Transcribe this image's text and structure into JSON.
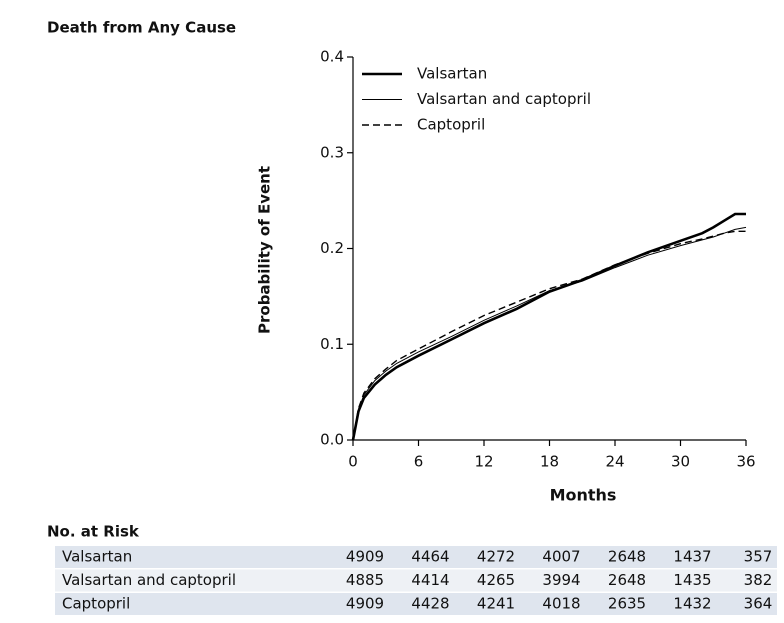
{
  "chart_data": {
    "type": "line",
    "title": "Death from Any Cause",
    "xlabel": "Months",
    "ylabel": "Probability of Event",
    "x": [
      0,
      0.5,
      1,
      2,
      3,
      4,
      6,
      9,
      12,
      15,
      18,
      21,
      24,
      27,
      30,
      32,
      33,
      34,
      35,
      36
    ],
    "xlim": [
      0,
      36
    ],
    "xticks": [
      0,
      6,
      12,
      18,
      24,
      30,
      36
    ],
    "ylim": [
      0,
      0.4
    ],
    "yticks": [
      {
        "value": 0,
        "label": "0.0"
      },
      0.1,
      0.2,
      0.3,
      0.4
    ],
    "grid": false,
    "legend": "top-left",
    "series": [
      {
        "name": "Valsartan",
        "color": "#000000",
        "width": 2.6,
        "dash": "none",
        "values": [
          0,
          0.03,
          0.044,
          0.058,
          0.068,
          0.076,
          0.088,
          0.105,
          0.122,
          0.137,
          0.155,
          0.167,
          0.182,
          0.196,
          0.208,
          0.216,
          0.222,
          0.229,
          0.236,
          0.236
        ]
      },
      {
        "name": "Valsartan and captopril",
        "color": "#000000",
        "width": 1,
        "dash": "none",
        "values": [
          0,
          0.032,
          0.047,
          0.062,
          0.072,
          0.08,
          0.092,
          0.108,
          0.125,
          0.14,
          0.156,
          0.166,
          0.18,
          0.193,
          0.203,
          0.209,
          0.212,
          0.216,
          0.22,
          0.222
        ]
      },
      {
        "name": "Captopril",
        "color": "#000000",
        "width": 1.4,
        "dash": "7,4",
        "values": [
          0,
          0.033,
          0.049,
          0.064,
          0.074,
          0.083,
          0.095,
          0.113,
          0.13,
          0.144,
          0.158,
          0.168,
          0.183,
          0.195,
          0.205,
          0.21,
          0.213,
          0.216,
          0.218,
          0.218
        ]
      }
    ],
    "risk_table": {
      "title": "No. at Risk",
      "rows": [
        {
          "name": "Valsartan",
          "values": [
            4909,
            4464,
            4272,
            4007,
            2648,
            1437,
            357
          ]
        },
        {
          "name": "Valsartan and captopril",
          "values": [
            4885,
            4414,
            4265,
            3994,
            2648,
            1435,
            382
          ]
        },
        {
          "name": "Captopril",
          "values": [
            4909,
            4428,
            4241,
            4018,
            2635,
            1432,
            364
          ]
        }
      ]
    }
  }
}
